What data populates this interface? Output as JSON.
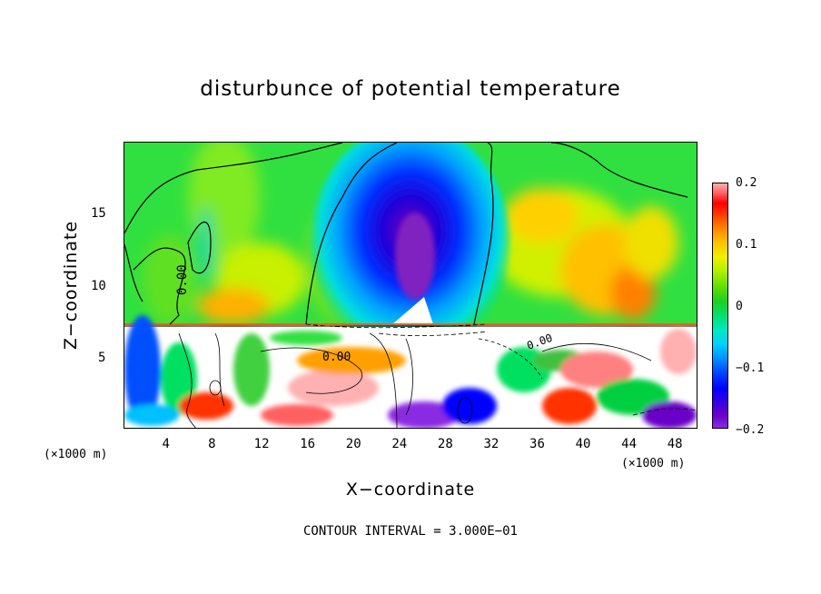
{
  "title": "disturbunce of potential temperature",
  "chart_data": {
    "type": "heatmap",
    "title": "disturbunce of potential temperature",
    "xlabel": "X−coordinate",
    "ylabel": "Z−coordinate",
    "x_unit": "(×1000 m)",
    "y_unit": "(×1000 m)",
    "xlim": [
      0,
      50
    ],
    "ylim": [
      0,
      20
    ],
    "x_ticks": [
      "4",
      "8",
      "12",
      "16",
      "20",
      "24",
      "28",
      "32",
      "36",
      "40",
      "44",
      "48"
    ],
    "x_tick_values": [
      4,
      8,
      12,
      16,
      20,
      24,
      28,
      32,
      36,
      40,
      44,
      48
    ],
    "y_ticks": [
      "5",
      "10",
      "15"
    ],
    "y_tick_values": [
      5,
      10,
      15
    ],
    "colorbar": {
      "range": [
        -0.2,
        0.2
      ],
      "ticks": [
        "0.2",
        "0.1",
        "0",
        "−0.1",
        "−0.2"
      ]
    },
    "contour_labels": [
      "0.00",
      "0.00",
      "0.00"
    ],
    "contour_interval": "CONTOUR INTERVAL = 3.000E−01",
    "features": [
      {
        "kind": "cold anomaly",
        "x": 25,
        "z": 12,
        "value": -0.2
      },
      {
        "kind": "warm anomaly",
        "x": 44,
        "z": 10,
        "value": 0.1
      },
      {
        "kind": "warm anomaly",
        "x": 9,
        "z": 10,
        "value": 0.1
      }
    ]
  },
  "colors": {
    "cold": "#6a00c8",
    "neutral": "#20d020",
    "warm": "#ff8000"
  }
}
